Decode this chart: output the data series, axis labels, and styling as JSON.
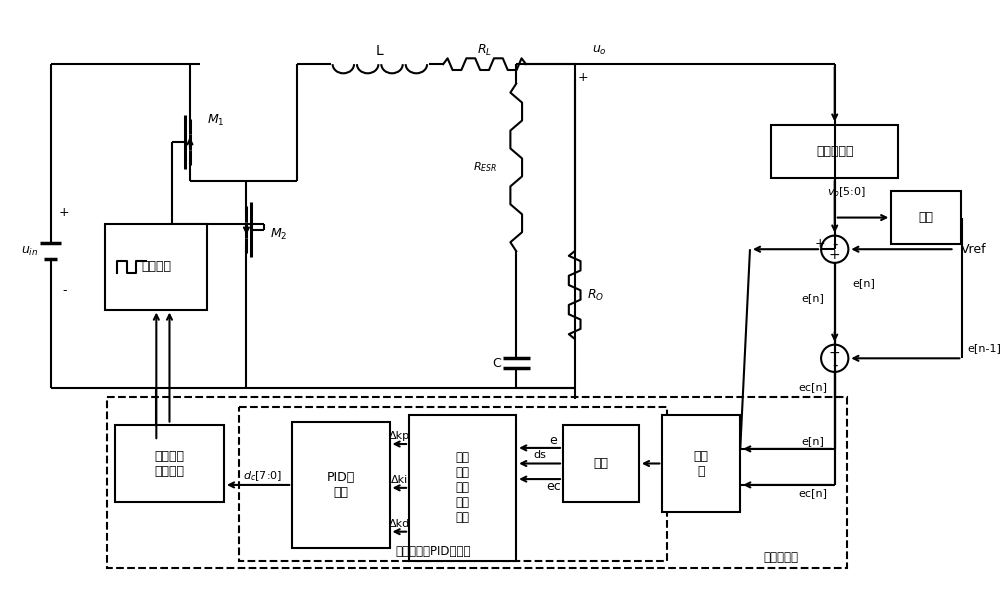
{
  "bg": "#ffffff",
  "lw": 1.5,
  "fs": 9,
  "labels": {
    "uin": "u_{in}",
    "M1": "M_1",
    "M2": "M_2",
    "L": "L",
    "RL": "R_L",
    "uo": "u_o",
    "RESR": "R_{ESR}",
    "RO": "R_O",
    "C": "C",
    "ADC": "模数转换器",
    "vo": "v_o[5:0]",
    "Vref": "Vref",
    "delay": "延迟",
    "en": "e[n]",
    "ecn": "ec[n]",
    "en1": "e[n-1]",
    "fuzzy": "模糊\n化",
    "dimred": "降维",
    "e_lbl": "e",
    "ec_lbl": "ec",
    "ds_lbl": "ds",
    "sif": "单输\n入模\n糊逻\n辑控\n制器",
    "pid": "PID控\n制器",
    "dkp": "Δkp",
    "dki": "Δki",
    "dkd": "Δkd",
    "dpwm": "数字脉宽\n调制单元",
    "dc": "d_c[7:0]",
    "sif_lbl": "单输入模糊 PID控制器",
    "dig_lbl": "数字控制器",
    "drive": "驱动模块",
    "plus": "+",
    "minus": "-"
  }
}
